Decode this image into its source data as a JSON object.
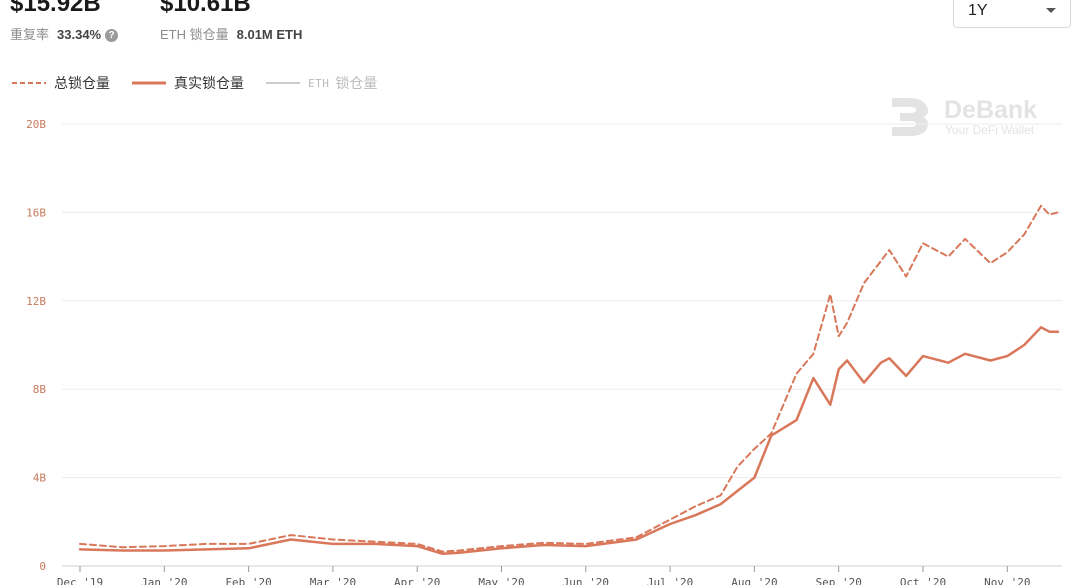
{
  "stats": {
    "total_value": "$15.92B",
    "reuse_label": "重复率",
    "reuse_value": "33.34%",
    "real_value": "$10.61B",
    "eth_label": "ETH 锁仓量",
    "eth_value": "8.01M ETH"
  },
  "range_select": {
    "value": "1Y"
  },
  "legend": {
    "total": "总锁仓量",
    "real": "真实锁仓量",
    "eth_prefix": "ETH",
    "eth": "锁仓量"
  },
  "watermark": {
    "name": "DeBank",
    "tagline": "Your DeFi Wallet"
  },
  "colors": {
    "accent": "#d9775a",
    "grid": "#ececec",
    "muted": "#bbbbbb"
  },
  "chart_data": {
    "type": "line",
    "y_ticks": [
      "0",
      "4B",
      "8B",
      "12B",
      "16B",
      "20B"
    ],
    "ylim": [
      0,
      20
    ],
    "x_ticks": [
      "Dec '19",
      "Jan '20",
      "Feb '20",
      "Mar '20",
      "Apr '20",
      "May '20",
      "Jun '20",
      "Jul '20",
      "Aug '20",
      "Sep '20",
      "Oct '20",
      "Nov '20"
    ],
    "x": [
      0,
      0.5,
      1,
      1.5,
      2,
      2.5,
      3,
      3.5,
      4,
      4.3,
      4.5,
      5,
      5.5,
      6,
      6.4,
      6.6,
      7,
      7.3,
      7.6,
      7.8,
      8,
      8.2,
      8.5,
      8.7,
      8.9,
      9,
      9.1,
      9.3,
      9.5,
      9.6,
      9.8,
      10,
      10.3,
      10.5,
      10.8,
      11,
      11.2,
      11.4,
      11.5,
      11.6
    ],
    "series": [
      {
        "name": "总锁仓量",
        "style": "dashed",
        "values": [
          1.0,
          0.85,
          0.9,
          1.0,
          1.0,
          1.4,
          1.2,
          1.1,
          1.0,
          0.65,
          0.7,
          0.9,
          1.05,
          1.0,
          1.2,
          1.3,
          2.1,
          2.7,
          3.2,
          4.5,
          5.3,
          6.0,
          8.7,
          9.6,
          12.3,
          10.4,
          11.0,
          12.8,
          13.8,
          14.3,
          13.1,
          14.6,
          14.0,
          14.8,
          13.7,
          14.2,
          15.0,
          16.3,
          15.9,
          16.0
        ]
      },
      {
        "name": "真实锁仓量",
        "style": "solid",
        "values": [
          0.75,
          0.7,
          0.7,
          0.75,
          0.8,
          1.2,
          1.0,
          1.0,
          0.9,
          0.55,
          0.6,
          0.8,
          0.95,
          0.9,
          1.1,
          1.2,
          1.9,
          2.3,
          2.8,
          3.4,
          4.0,
          5.9,
          6.6,
          8.5,
          7.3,
          8.9,
          9.3,
          8.3,
          9.2,
          9.4,
          8.6,
          9.5,
          9.2,
          9.6,
          9.3,
          9.5,
          10.0,
          10.8,
          10.6,
          10.6
        ]
      }
    ],
    "legend_position": "top-left",
    "grid": true
  }
}
